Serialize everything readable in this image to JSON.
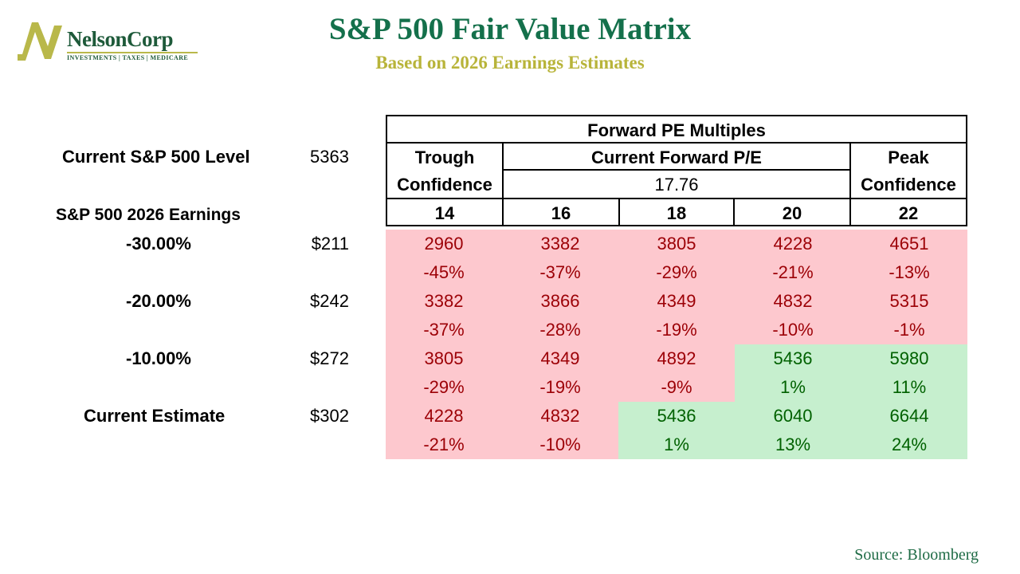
{
  "logo": {
    "name": "NelsonCorp",
    "tagline": "INVESTMENTS | TAXES | MEDICARE",
    "colors": {
      "mark": "#b9b84a",
      "text": "#1e5a3a"
    }
  },
  "title": "S&P 500 Fair Value Matrix",
  "subtitle": "Based on 2026 Earnings Estimates",
  "colors": {
    "title": "#14704b",
    "subtitle": "#b8b43a",
    "negative_bg": "#fdc8ce",
    "negative_text": "#9c0006",
    "positive_bg": "#c6efce",
    "positive_text": "#006100"
  },
  "current_level": {
    "label": "Current S&P 500 Level",
    "value": "5363"
  },
  "earnings_label": "S&P 500 2026 Earnings",
  "matrix": {
    "group_header": "Forward PE Multiples",
    "trough": {
      "line1": "Trough",
      "line2": "Confidence"
    },
    "current_pe": {
      "label": "Current Forward P/E",
      "value": "17.76"
    },
    "peak": {
      "line1": "Peak",
      "line2": "Confidence"
    },
    "multiples": [
      "14",
      "16",
      "18",
      "20",
      "22"
    ],
    "rows": [
      {
        "scenario": "-30.00%",
        "earnings": "$211",
        "values": [
          "2960",
          "3382",
          "3805",
          "4228",
          "4651"
        ],
        "changes": [
          "-45%",
          "-37%",
          "-29%",
          "-21%",
          "-13%"
        ]
      },
      {
        "scenario": "-20.00%",
        "earnings": "$242",
        "values": [
          "3382",
          "3866",
          "4349",
          "4832",
          "5315"
        ],
        "changes": [
          "-37%",
          "-28%",
          "-19%",
          "-10%",
          "-1%"
        ]
      },
      {
        "scenario": "-10.00%",
        "earnings": "$272",
        "values": [
          "3805",
          "4349",
          "4892",
          "5436",
          "5980"
        ],
        "changes": [
          "-29%",
          "-19%",
          "-9%",
          "1%",
          "11%"
        ]
      },
      {
        "scenario": "Current Estimate",
        "earnings": "$302",
        "values": [
          "4228",
          "4832",
          "5436",
          "6040",
          "6644"
        ],
        "changes": [
          "-21%",
          "-10%",
          "1%",
          "13%",
          "24%"
        ]
      }
    ]
  },
  "source": "Source: Bloomberg"
}
